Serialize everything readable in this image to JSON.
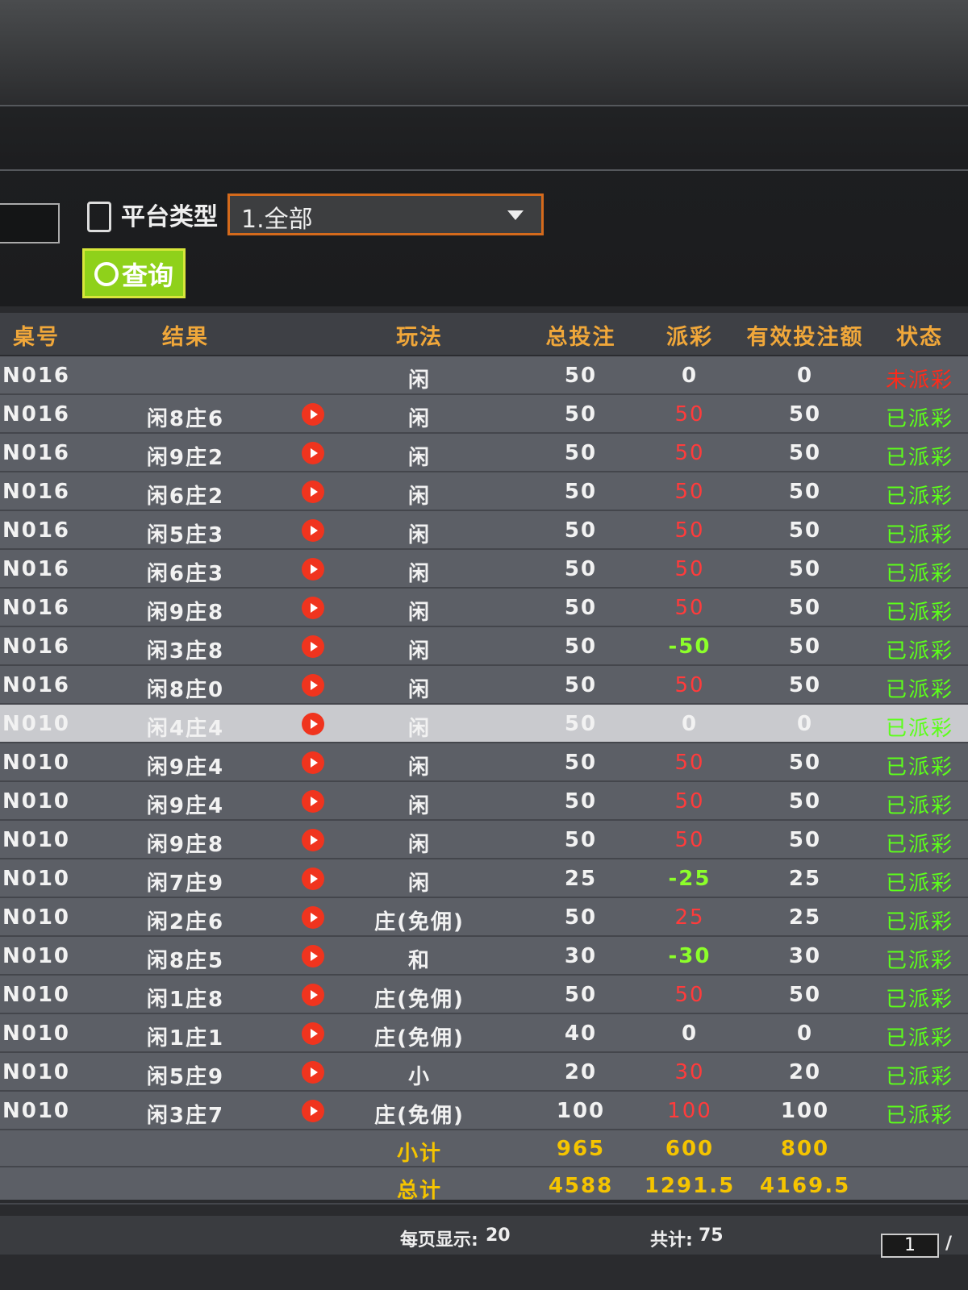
{
  "filter": {
    "label": "平台类型",
    "select": "1.全部",
    "button": "查询"
  },
  "table": {
    "headers": [
      "桌号",
      "结果",
      "玩法",
      "总投注",
      "派彩",
      "有效投注额",
      "状态"
    ],
    "rows": [
      {
        "table": "N016",
        "result": "",
        "play": "闲",
        "total_bet": 50,
        "payout": 0,
        "valid_bet": 0,
        "status": "未派彩",
        "status_color": "#ff2a1a"
      },
      {
        "table": "N016",
        "result": "闲8庄6",
        "play": "闲",
        "total_bet": 50,
        "payout": 50,
        "valid_bet": 50,
        "status": "已派彩",
        "status_color": "#5cff1a"
      },
      {
        "table": "N016",
        "result": "闲9庄2",
        "play": "闲",
        "total_bet": 50,
        "payout": 50,
        "valid_bet": 50,
        "status": "已派彩",
        "status_color": "#5cff1a"
      },
      {
        "table": "N016",
        "result": "闲6庄2",
        "play": "闲",
        "total_bet": 50,
        "payout": 50,
        "valid_bet": 50,
        "status": "已派彩",
        "status_color": "#5cff1a"
      },
      {
        "table": "N016",
        "result": "闲5庄3",
        "play": "闲",
        "total_bet": 50,
        "payout": 50,
        "valid_bet": 50,
        "status": "已派彩",
        "status_color": "#5cff1a"
      },
      {
        "table": "N016",
        "result": "闲6庄3",
        "play": "闲",
        "total_bet": 50,
        "payout": 50,
        "valid_bet": 50,
        "status": "已派彩",
        "status_color": "#5cff1a"
      },
      {
        "table": "N016",
        "result": "闲9庄8",
        "play": "闲",
        "total_bet": 50,
        "payout": 50,
        "valid_bet": 50,
        "status": "已派彩",
        "status_color": "#5cff1a"
      },
      {
        "table": "N016",
        "result": "闲3庄8",
        "play": "闲",
        "total_bet": 50,
        "payout": -50,
        "valid_bet": 50,
        "status": "已派彩",
        "status_color": "#5cff1a"
      },
      {
        "table": "N016",
        "result": "闲8庄0",
        "play": "闲",
        "total_bet": 50,
        "payout": 50,
        "valid_bet": 50,
        "status": "已派彩",
        "status_color": "#5cff1a"
      },
      {
        "table": "N010",
        "result": "闲4庄4",
        "play": "闲",
        "total_bet": 50,
        "payout": 0,
        "valid_bet": 0,
        "status": "已派彩",
        "status_color": "#5cff1a"
      },
      {
        "table": "N010",
        "result": "闲9庄4",
        "play": "闲",
        "total_bet": 50,
        "payout": 50,
        "valid_bet": 50,
        "status": "已派彩",
        "status_color": "#5cff1a"
      },
      {
        "table": "N010",
        "result": "闲9庄4",
        "play": "闲",
        "total_bet": 50,
        "payout": 50,
        "valid_bet": 50,
        "status": "已派彩",
        "status_color": "#5cff1a"
      },
      {
        "table": "N010",
        "result": "闲9庄8",
        "play": "闲",
        "total_bet": 50,
        "payout": 50,
        "valid_bet": 50,
        "status": "已派彩",
        "status_color": "#5cff1a"
      },
      {
        "table": "N010",
        "result": "闲7庄9",
        "play": "闲",
        "total_bet": 25,
        "payout": -25,
        "valid_bet": 25,
        "status": "已派彩",
        "status_color": "#5cff1a"
      },
      {
        "table": "N010",
        "result": "闲2庄6",
        "play": "庄(免佣)",
        "total_bet": 50,
        "payout": 25,
        "valid_bet": 25,
        "status": "已派彩",
        "status_color": "#5cff1a"
      },
      {
        "table": "N010",
        "result": "闲8庄5",
        "play": "和",
        "total_bet": 30,
        "payout": -30,
        "valid_bet": 30,
        "status": "已派彩",
        "status_color": "#5cff1a"
      },
      {
        "table": "N010",
        "result": "闲1庄8",
        "play": "庄(免佣)",
        "total_bet": 50,
        "payout": 50,
        "valid_bet": 50,
        "status": "已派彩",
        "status_color": "#5cff1a"
      },
      {
        "table": "N010",
        "result": "闲1庄1",
        "play": "庄(免佣)",
        "total_bet": 40,
        "payout": 0,
        "valid_bet": 0,
        "status": "已派彩",
        "status_color": "#5cff1a"
      },
      {
        "table": "N010",
        "result": "闲5庄9",
        "play": "小",
        "total_bet": 20,
        "payout": 30,
        "valid_bet": 20,
        "status": "已派彩",
        "status_color": "#5cff1a"
      },
      {
        "table": "N010",
        "result": "闲3庄7",
        "play": "庄(免佣)",
        "total_bet": 100,
        "payout": 100,
        "valid_bet": 100,
        "status": "已派彩",
        "status_color": "#5cff1a"
      }
    ],
    "subtotal": {
      "label": "小计",
      "total_bet": 965,
      "payout": 600,
      "valid_bet": 800
    },
    "total": {
      "label": "总计",
      "total_bet": 4588,
      "payout": 1291.5,
      "valid_bet": 4169.5
    }
  },
  "footer": {
    "per_page_label": "每页显示:",
    "per_page": 20,
    "count_label": "共计:",
    "count": 75,
    "page": 1,
    "separator": "/"
  }
}
